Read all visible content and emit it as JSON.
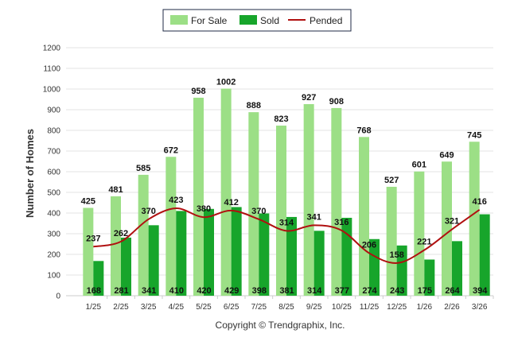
{
  "chart_data": {
    "type": "bar",
    "categories": [
      "1/25",
      "2/25",
      "3/25",
      "4/25",
      "5/25",
      "6/25",
      "7/25",
      "8/25",
      "9/25",
      "10/25",
      "11/25",
      "12/25",
      "1/26",
      "2/26",
      "3/26"
    ],
    "series": [
      {
        "name": "For Sale",
        "type": "bar",
        "color": "#9cdf86",
        "values": [
          425,
          481,
          585,
          672,
          958,
          1002,
          888,
          823,
          927,
          908,
          768,
          527,
          601,
          649,
          745
        ]
      },
      {
        "name": "Sold",
        "type": "bar",
        "color": "#17a52b",
        "values": [
          168,
          281,
          341,
          410,
          420,
          429,
          398,
          381,
          314,
          377,
          274,
          243,
          175,
          264,
          394
        ]
      },
      {
        "name": "Pended",
        "type": "line",
        "color": "#b01010",
        "values": [
          237,
          262,
          370,
          423,
          380,
          412,
          370,
          314,
          341,
          316,
          206,
          158,
          221,
          321,
          416
        ]
      }
    ],
    "ylabel": "Number of Homes",
    "xlabel": "",
    "ylim": [
      0,
      1200
    ],
    "yticks": [
      0,
      100,
      200,
      300,
      400,
      500,
      600,
      700,
      800,
      900,
      1000,
      1100,
      1200
    ],
    "grid": true,
    "legend_position": "top-center",
    "footer": "Copyright © Trendgraphix, Inc."
  }
}
